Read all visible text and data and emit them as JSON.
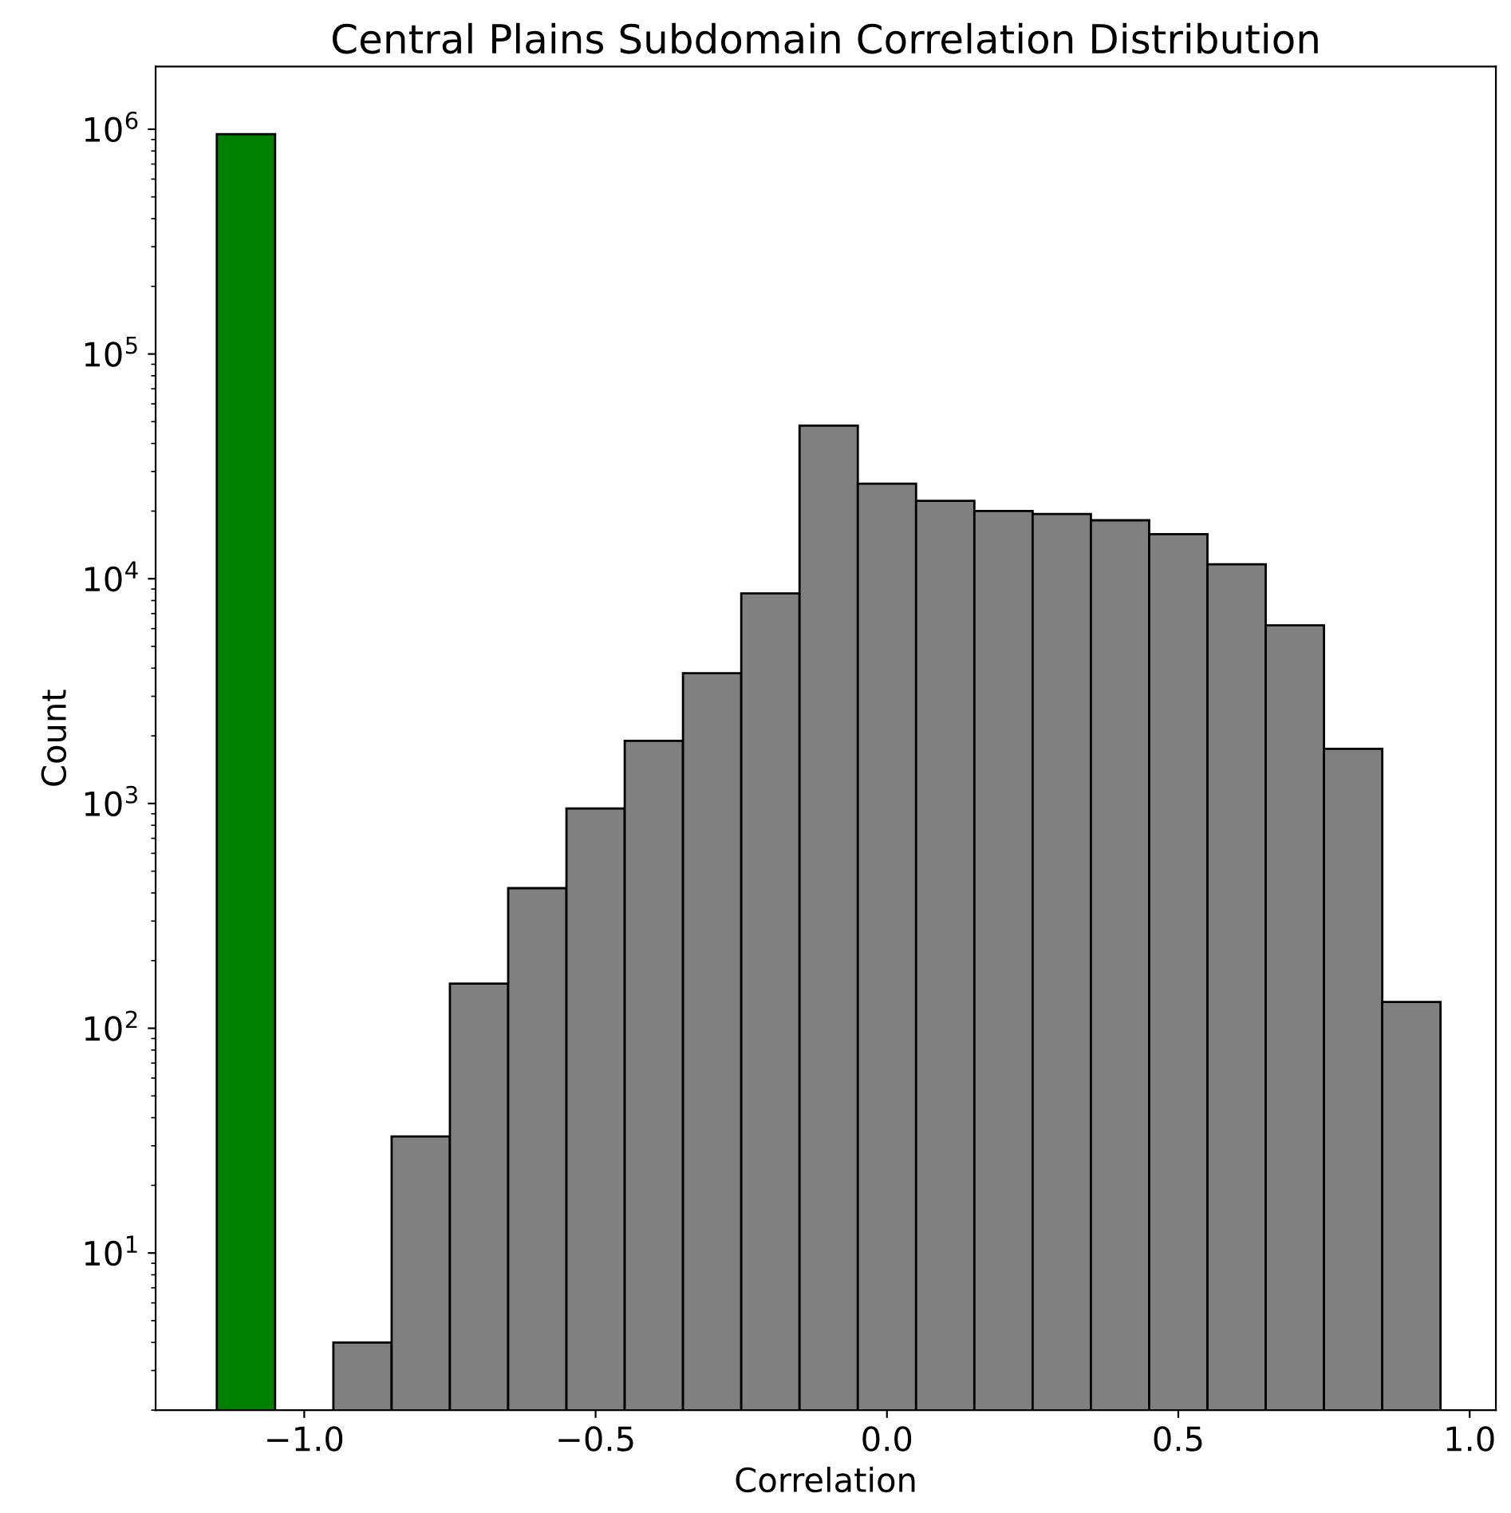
{
  "chart_data": {
    "type": "histogram",
    "title": "Central Plains Subdomain Correlation Distribution",
    "xlabel": "Correlation",
    "ylabel": "Count",
    "log": "y",
    "bins": [
      -1.15,
      -1.05,
      -0.95,
      -0.85,
      -0.75,
      -0.65,
      -0.55,
      -0.45,
      -0.35,
      -0.25,
      -0.15,
      -0.05,
      0.05,
      0.15,
      0.25,
      0.35,
      0.45,
      0.55,
      0.65,
      0.75,
      0.85,
      0.95
    ],
    "values": [
      950000,
      null,
      4,
      33,
      158,
      420,
      950,
      1900,
      3800,
      8600,
      48000,
      26500,
      22200,
      20000,
      19400,
      18200,
      15800,
      11600,
      6200,
      1750,
      131
    ],
    "colors": [
      "#008000",
      null,
      "#808080",
      "#808080",
      "#808080",
      "#808080",
      "#808080",
      "#808080",
      "#808080",
      "#808080",
      "#808080",
      "#808080",
      "#808080",
      "#808080",
      "#808080",
      "#808080",
      "#808080",
      "#808080",
      "#808080",
      "#808080",
      "#808080"
    ],
    "xlim": [
      -1.255,
      1.045
    ],
    "xticks": [
      {
        "value": -1.0,
        "label": "−1.0"
      },
      {
        "value": -0.5,
        "label": "−0.5"
      },
      {
        "value": 0,
        "label": "0.0"
      },
      {
        "value": 0.5,
        "label": "0.5"
      },
      {
        "value": 1,
        "label": "1.0"
      }
    ],
    "ylim": [
      2,
      1900000
    ],
    "yticks": [
      {
        "value": 10,
        "label": "10$^{1}$"
      },
      {
        "value": 100,
        "label": "10$^{2}$"
      },
      {
        "value": 1000,
        "label": "10$^{3}$"
      },
      {
        "value": 10000,
        "label": "10$^{4}$"
      },
      {
        "value": 100000,
        "label": "10$^{5}$"
      },
      {
        "value": 1000000,
        "label": "10$^{6}$"
      }
    ]
  }
}
